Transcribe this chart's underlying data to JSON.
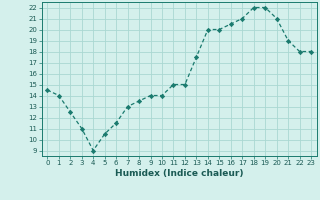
{
  "x": [
    0,
    1,
    2,
    3,
    4,
    5,
    6,
    7,
    8,
    9,
    10,
    11,
    12,
    13,
    14,
    15,
    16,
    17,
    18,
    19,
    20,
    21,
    22,
    23
  ],
  "y": [
    14.5,
    14.0,
    12.5,
    11.0,
    9.0,
    10.5,
    11.5,
    13.0,
    13.5,
    14.0,
    14.0,
    15.0,
    15.0,
    17.5,
    20.0,
    20.0,
    20.5,
    21.0,
    22.0,
    22.0,
    21.0,
    19.0,
    18.0,
    18.0
  ],
  "xlabel": "Humidex (Indice chaleur)",
  "xlim": [
    -0.5,
    23.5
  ],
  "ylim": [
    8.5,
    22.5
  ],
  "yticks": [
    9,
    10,
    11,
    12,
    13,
    14,
    15,
    16,
    17,
    18,
    19,
    20,
    21,
    22
  ],
  "xticks": [
    0,
    1,
    2,
    3,
    4,
    5,
    6,
    7,
    8,
    9,
    10,
    11,
    12,
    13,
    14,
    15,
    16,
    17,
    18,
    19,
    20,
    21,
    22,
    23
  ],
  "line_color": "#1a7a6e",
  "marker_color": "#1a7a6e",
  "bg_color": "#d4f0ec",
  "grid_color": "#aad8d2"
}
